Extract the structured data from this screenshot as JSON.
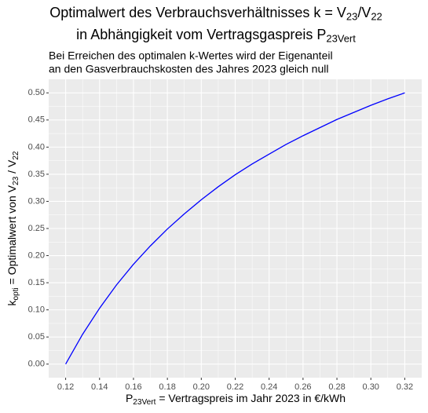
{
  "chart_data": {
    "type": "line",
    "title": [
      [
        "Optimalwert des Verbrauchsverhältnisses k =  V",
        "23",
        "/V",
        "22"
      ],
      [
        "in Abhängigkeit vom Vertragsgaspreis P",
        "23Vert"
      ]
    ],
    "subtitle": [
      "Bei Erreichen des optimalen k-Wertes wird der Eigenanteil",
      "an den Gasverbrauchskosten des Jahres 2023 gleich null"
    ],
    "xlabel": [
      "P",
      "23Vert",
      " = Vertragspreis im Jahr 2023 in €/kWh"
    ],
    "ylabel": [
      "k",
      "opti",
      " = Optimalwert von V",
      "23",
      " / V",
      "22"
    ],
    "x": [
      0.12,
      0.13,
      0.14,
      0.15,
      0.16,
      0.17,
      0.18,
      0.19,
      0.2,
      0.21,
      0.22,
      0.23,
      0.24,
      0.25,
      0.26,
      0.27,
      0.28,
      0.29,
      0.3,
      0.31,
      0.32
    ],
    "series": [
      {
        "color": "#0000ff",
        "values": [
          0,
          0.055,
          0.103,
          0.146,
          0.184,
          0.218,
          0.249,
          0.277,
          0.303,
          0.327,
          0.349,
          0.369,
          0.387,
          0.405,
          0.421,
          0.436,
          0.451,
          0.464,
          0.477,
          0.489,
          0.5
        ]
      }
    ],
    "xlim": [
      0.11,
      0.33
    ],
    "ylim": [
      -0.025,
      0.525
    ],
    "xticks": [
      0.12,
      0.14,
      0.16,
      0.18,
      {
        "value": 0.2,
        "label": "0.20"
      },
      0.22,
      0.24,
      0.26,
      0.28,
      {
        "value": 0.3,
        "label": "0.30"
      },
      0.32
    ],
    "yticks": [
      {
        "value": 0,
        "label": "0.00"
      },
      0.05,
      {
        "value": 0.1,
        "label": "0.10"
      },
      0.15,
      {
        "value": 0.2,
        "label": "0.20"
      },
      0.25,
      {
        "value": 0.3,
        "label": "0.30"
      },
      0.35,
      {
        "value": 0.4,
        "label": "0.40"
      },
      0.45,
      {
        "value": 0.5,
        "label": "0.50"
      }
    ],
    "grid": true
  }
}
